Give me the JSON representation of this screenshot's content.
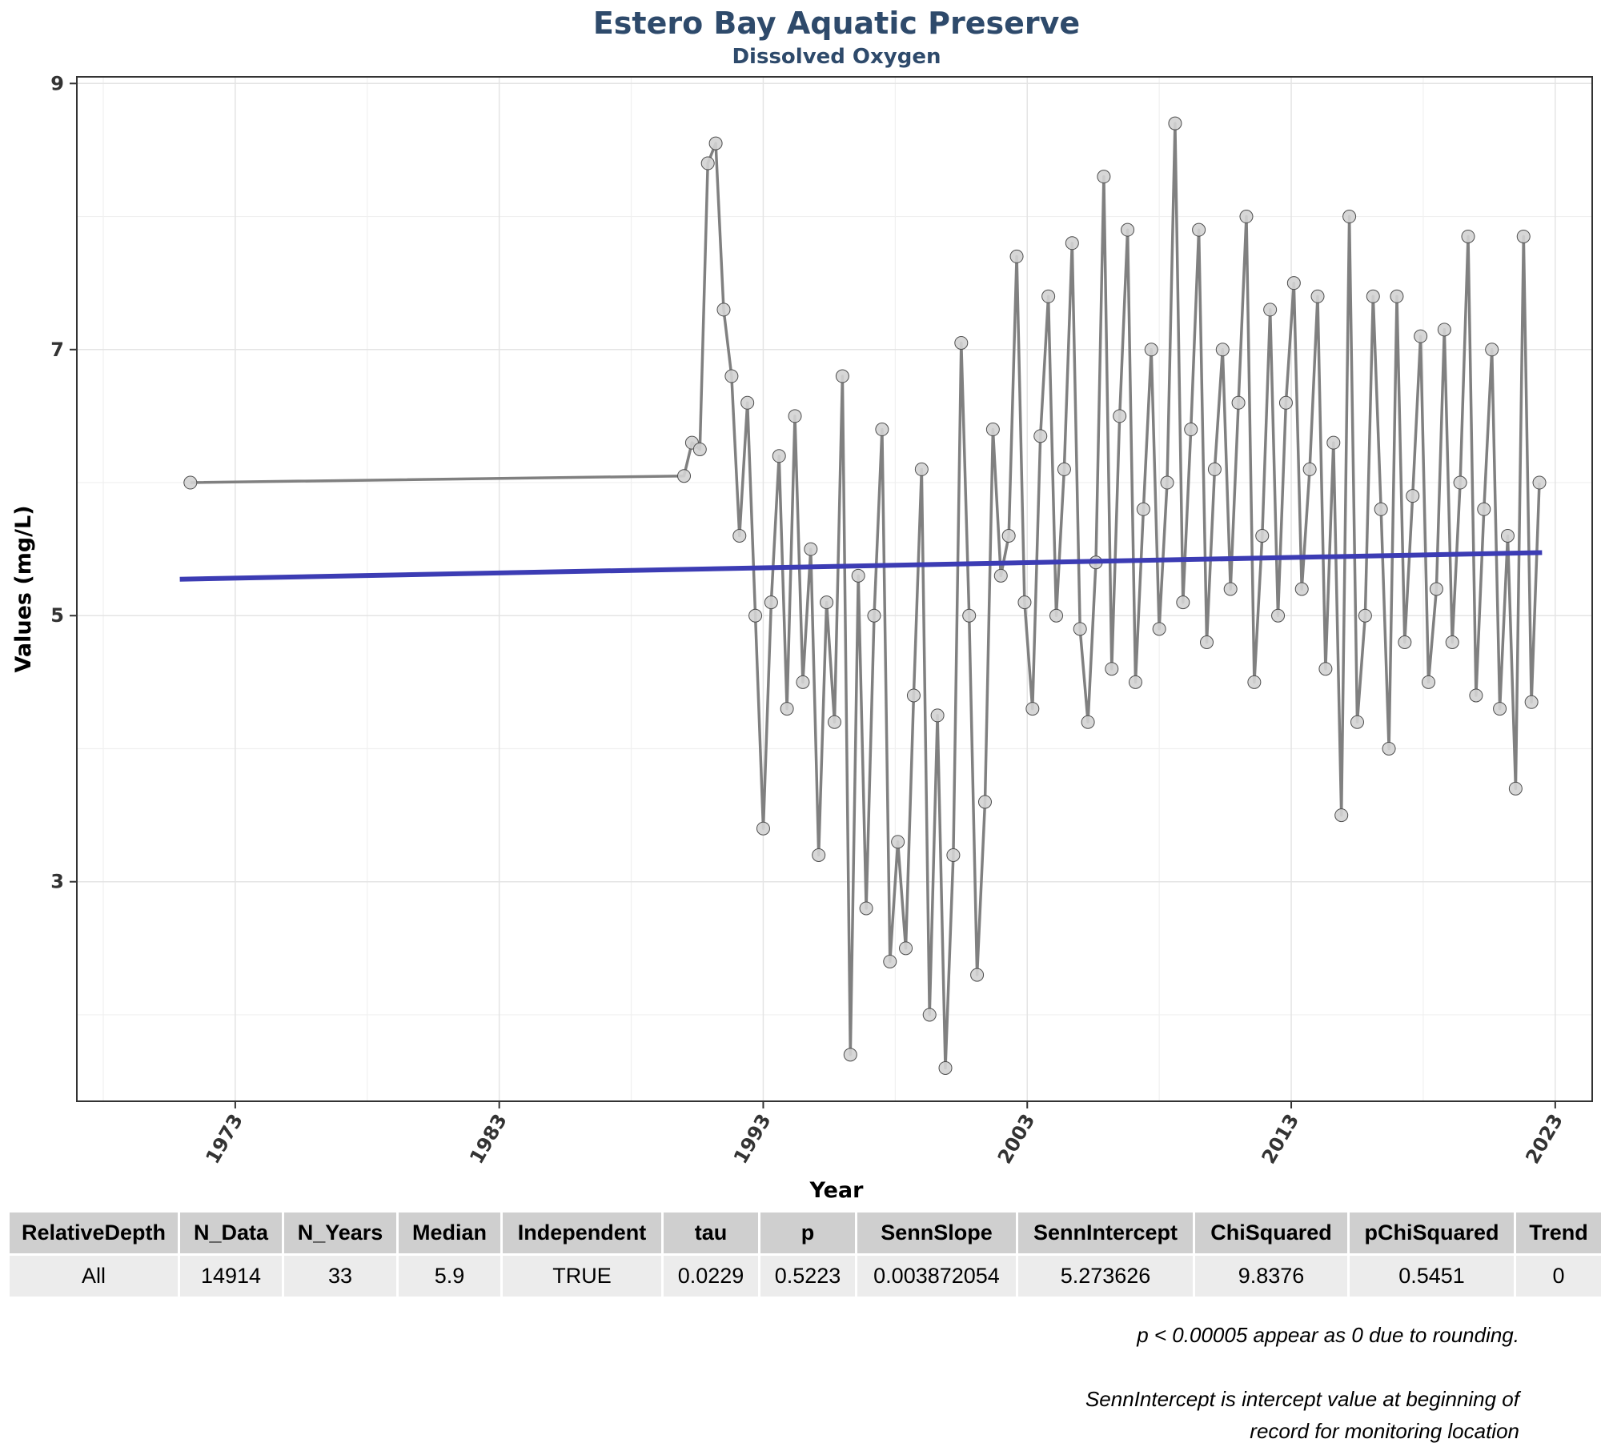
{
  "chart_data": {
    "type": "line",
    "title": "Estero Bay Aquatic Preserve",
    "subtitle": "Dissolved Oxygen",
    "xlabel": "Year",
    "ylabel": "Values (mg/L)",
    "xlim": [
      1967.0,
      2024.4
    ],
    "ylim": [
      1.35,
      9.05
    ],
    "x_ticks": [
      1973,
      1983,
      1993,
      2003,
      2013,
      2023
    ],
    "y_ticks": [
      3,
      5,
      7,
      9
    ],
    "grid": true,
    "legend": "none",
    "colors": {
      "series": "#808080",
      "trend": "#3c3cb4",
      "point_fill": "#d3d3d3",
      "point_stroke": "#4d4d4d"
    },
    "series": [
      {
        "x": [
          1971.3,
          1990.0,
          1990.3,
          1990.6,
          1990.9,
          1991.2,
          1991.5,
          1991.8,
          1992.1,
          1992.4,
          1992.7,
          1993.0,
          1993.3,
          1993.6,
          1993.9,
          1994.2,
          1994.5,
          1994.8,
          1995.1,
          1995.4,
          1995.7,
          1996.0,
          1996.3,
          1996.6,
          1996.9,
          1997.2,
          1997.5,
          1997.8,
          1998.1,
          1998.4,
          1998.7,
          1999.0,
          1999.3,
          1999.6,
          1999.9,
          2000.2,
          2000.5,
          2000.8,
          2001.1,
          2001.4,
          2001.7,
          2002.0,
          2002.3,
          2002.6,
          2002.9,
          2003.2,
          2003.5,
          2003.8,
          2004.1,
          2004.4,
          2004.7,
          2005.0,
          2005.3,
          2005.6,
          2005.9,
          2006.2,
          2006.5,
          2006.8,
          2007.1,
          2007.4,
          2007.7,
          2008.0,
          2008.3,
          2008.6,
          2008.9,
          2009.2,
          2009.5,
          2009.8,
          2010.1,
          2010.4,
          2010.7,
          2011.0,
          2011.3,
          2011.6,
          2011.9,
          2012.2,
          2012.5,
          2012.8,
          2013.1,
          2013.4,
          2013.7,
          2014.0,
          2014.3,
          2014.6,
          2014.9,
          2015.2,
          2015.5,
          2015.8,
          2016.1,
          2016.4,
          2016.7,
          2017.0,
          2017.3,
          2017.6,
          2017.9,
          2018.2,
          2018.5,
          2018.8,
          2019.1,
          2019.4,
          2019.7,
          2020.0,
          2020.3,
          2020.6,
          2020.9,
          2021.2,
          2021.5,
          2021.8,
          2022.1,
          2022.4
        ],
        "values": [
          6.0,
          6.05,
          6.3,
          6.25,
          8.4,
          8.55,
          7.3,
          6.8,
          5.6,
          6.6,
          5.0,
          3.4,
          5.1,
          6.2,
          4.3,
          6.5,
          4.5,
          5.5,
          3.2,
          5.1,
          4.2,
          6.8,
          1.7,
          5.3,
          2.8,
          5.0,
          6.4,
          2.4,
          3.3,
          2.5,
          4.4,
          6.1,
          2.0,
          4.25,
          1.6,
          3.2,
          7.05,
          5.0,
          2.3,
          3.6,
          6.4,
          5.3,
          5.6,
          7.7,
          5.1,
          4.3,
          6.35,
          7.4,
          5.0,
          6.1,
          7.8,
          4.9,
          4.2,
          5.4,
          8.3,
          4.6,
          6.5,
          7.9,
          4.5,
          5.8,
          7.0,
          4.9,
          6.0,
          8.7,
          5.1,
          6.4,
          7.9,
          4.8,
          6.1,
          7.0,
          5.2,
          6.6,
          8.0,
          4.5,
          5.6,
          7.3,
          5.0,
          6.6,
          7.5,
          5.2,
          6.1,
          7.4,
          4.6,
          6.3,
          3.5,
          8.0,
          4.2,
          5.0,
          7.4,
          5.8,
          4.0,
          7.4,
          4.8,
          5.9,
          7.1,
          4.5,
          5.2,
          7.15,
          4.8,
          6.0,
          7.85,
          4.4,
          5.8,
          7.0,
          4.3,
          5.6,
          3.7,
          7.85,
          4.35,
          6.0
        ]
      },
      {
        "name": "SennSlope trend",
        "x": [
          1970.9,
          2022.5
        ],
        "values": [
          5.274,
          5.474
        ]
      }
    ]
  },
  "table": {
    "headers": [
      "RelativeDepth",
      "N_Data",
      "N_Years",
      "Median",
      "Independent",
      "tau",
      "p",
      "SennSlope",
      "SennIntercept",
      "ChiSquared",
      "pChiSquared",
      "Trend"
    ],
    "rows": [
      [
        "All",
        "14914",
        "33",
        "5.9",
        "TRUE",
        "0.0229",
        "0.5223",
        "0.003872054",
        "5.273626",
        "9.8376",
        "0.5451",
        "0"
      ]
    ]
  },
  "notes": {
    "rounding": "p < 0.00005 appear as 0 due to rounding.",
    "intercept_line1": "SennIntercept is intercept value at beginning of",
    "intercept_line2": "record for monitoring location"
  }
}
